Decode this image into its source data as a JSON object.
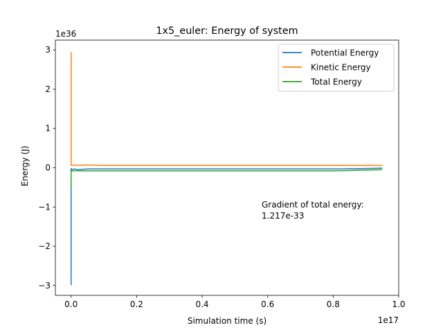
{
  "chart_data": {
    "type": "line",
    "title": "1x5_euler: Energy of system",
    "xlabel": "Simulation time (s)",
    "ylabel": "Energy (J)",
    "x_offset_text": "1e17",
    "y_offset_text": "1e36",
    "xlim": [
      -0.048,
      1.0
    ],
    "ylim": [
      -3.25,
      3.25
    ],
    "x_ticks": [
      0.0,
      0.2,
      0.4,
      0.6,
      0.8,
      1.0
    ],
    "x_tick_labels": [
      "0.0",
      "0.2",
      "0.4",
      "0.6",
      "0.8",
      "1.0"
    ],
    "y_ticks": [
      -3,
      -2,
      -1,
      0,
      1,
      2,
      3
    ],
    "y_tick_labels": [
      "−3",
      "−2",
      "−1",
      "0",
      "1",
      "2",
      "3"
    ],
    "legend_position": "top-right",
    "grid": false,
    "annotation": {
      "lines": [
        "Gradient of total energy:",
        "1.217e-33"
      ],
      "x": 0.585,
      "y": -1.15
    },
    "series": [
      {
        "name": "Potential Energy",
        "color": "#1f77b4",
        "x": [
          0.0,
          0.0,
          0.0,
          0.0,
          0.0,
          0.0,
          0.002,
          0.01,
          0.02,
          0.05,
          0.1,
          0.3,
          0.5,
          0.7,
          0.82,
          0.9,
          0.95
        ],
        "y": [
          -0.03,
          -2.98,
          -0.5,
          -2.9,
          -0.03,
          -0.02,
          -0.05,
          -0.03,
          -0.05,
          -0.03,
          -0.03,
          -0.03,
          -0.03,
          -0.03,
          -0.03,
          -0.02,
          -0.01
        ]
      },
      {
        "name": "Kinetic Energy",
        "color": "#ff7f0e",
        "x": [
          0.0,
          0.0,
          0.0,
          0.0,
          0.0,
          0.002,
          0.01,
          0.02,
          0.05,
          0.1,
          0.3,
          0.5,
          0.7,
          0.9,
          0.95
        ],
        "y": [
          0.05,
          2.93,
          0.2,
          2.9,
          0.08,
          0.06,
          0.07,
          0.06,
          0.07,
          0.06,
          0.06,
          0.06,
          0.06,
          0.06,
          0.06
        ]
      },
      {
        "name": "Total Energy",
        "color": "#2ca02c",
        "x": [
          0.0,
          0.0,
          0.0,
          0.0,
          0.005,
          0.05,
          0.2,
          0.4,
          0.6,
          0.8,
          0.85,
          0.9,
          0.95
        ],
        "y": [
          -0.55,
          -0.3,
          -0.12,
          -0.08,
          -0.08,
          -0.08,
          -0.08,
          -0.08,
          -0.08,
          -0.08,
          -0.07,
          -0.06,
          -0.05
        ]
      }
    ]
  }
}
